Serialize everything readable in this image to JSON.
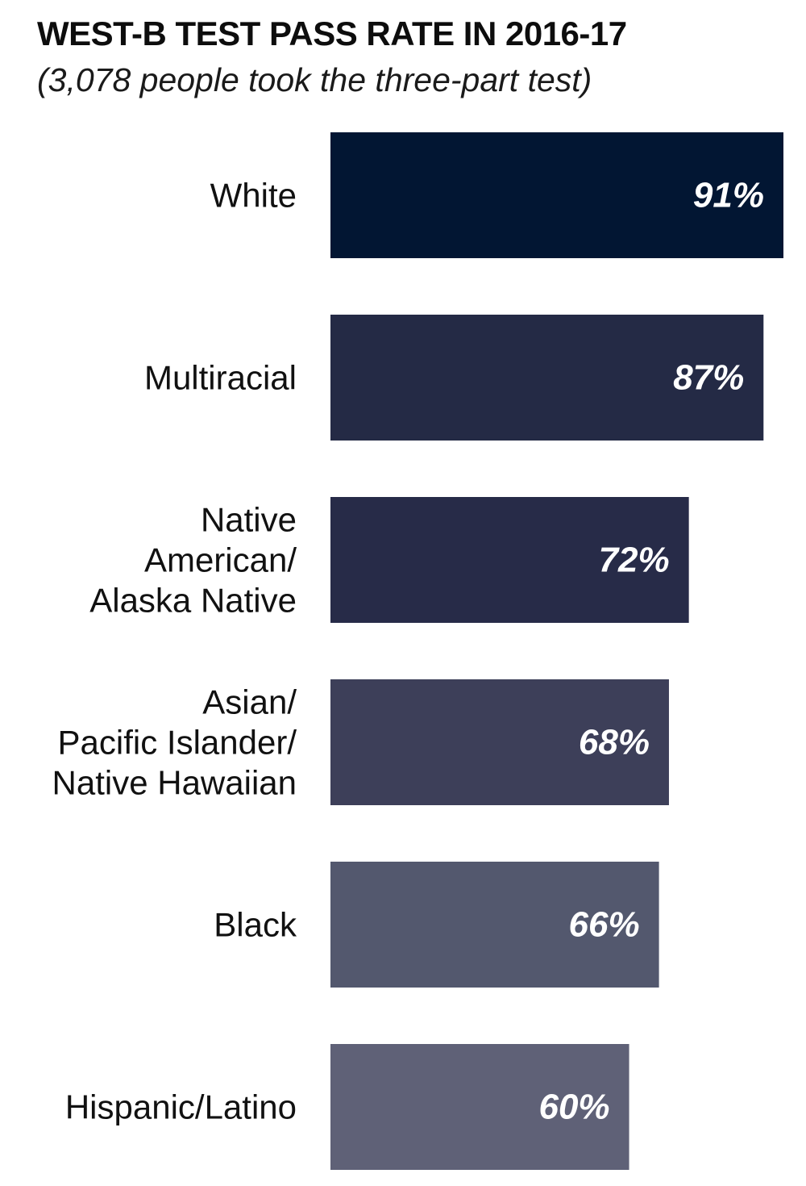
{
  "header": {
    "title": "WEST-B TEST PASS RATE IN 2016-17",
    "subtitle": "(3,078 people took the three-part test)"
  },
  "chart_data": {
    "type": "bar",
    "orientation": "horizontal",
    "title": "WEST-B TEST PASS RATE IN 2016-17",
    "subtitle": "(3,078 people took the three-part test)",
    "categories": [
      [
        "White"
      ],
      [
        "Multiracial"
      ],
      [
        "Native",
        "American/",
        "Alaska Native"
      ],
      [
        "Asian/",
        "Pacific Islander/",
        "Native Hawaiian"
      ],
      [
        "Black"
      ],
      [
        "Hispanic/Latino"
      ]
    ],
    "values": [
      91,
      87,
      72,
      68,
      66,
      60
    ],
    "value_labels": [
      "91%",
      "87%",
      "72%",
      "68%",
      "66%",
      "60%"
    ],
    "colors": [
      "#021633",
      "#242a45",
      "#272b48",
      "#3d3f59",
      "#53586e",
      "#5f6177"
    ],
    "xlim": [
      0,
      91
    ],
    "grid": false,
    "legend": "none"
  }
}
